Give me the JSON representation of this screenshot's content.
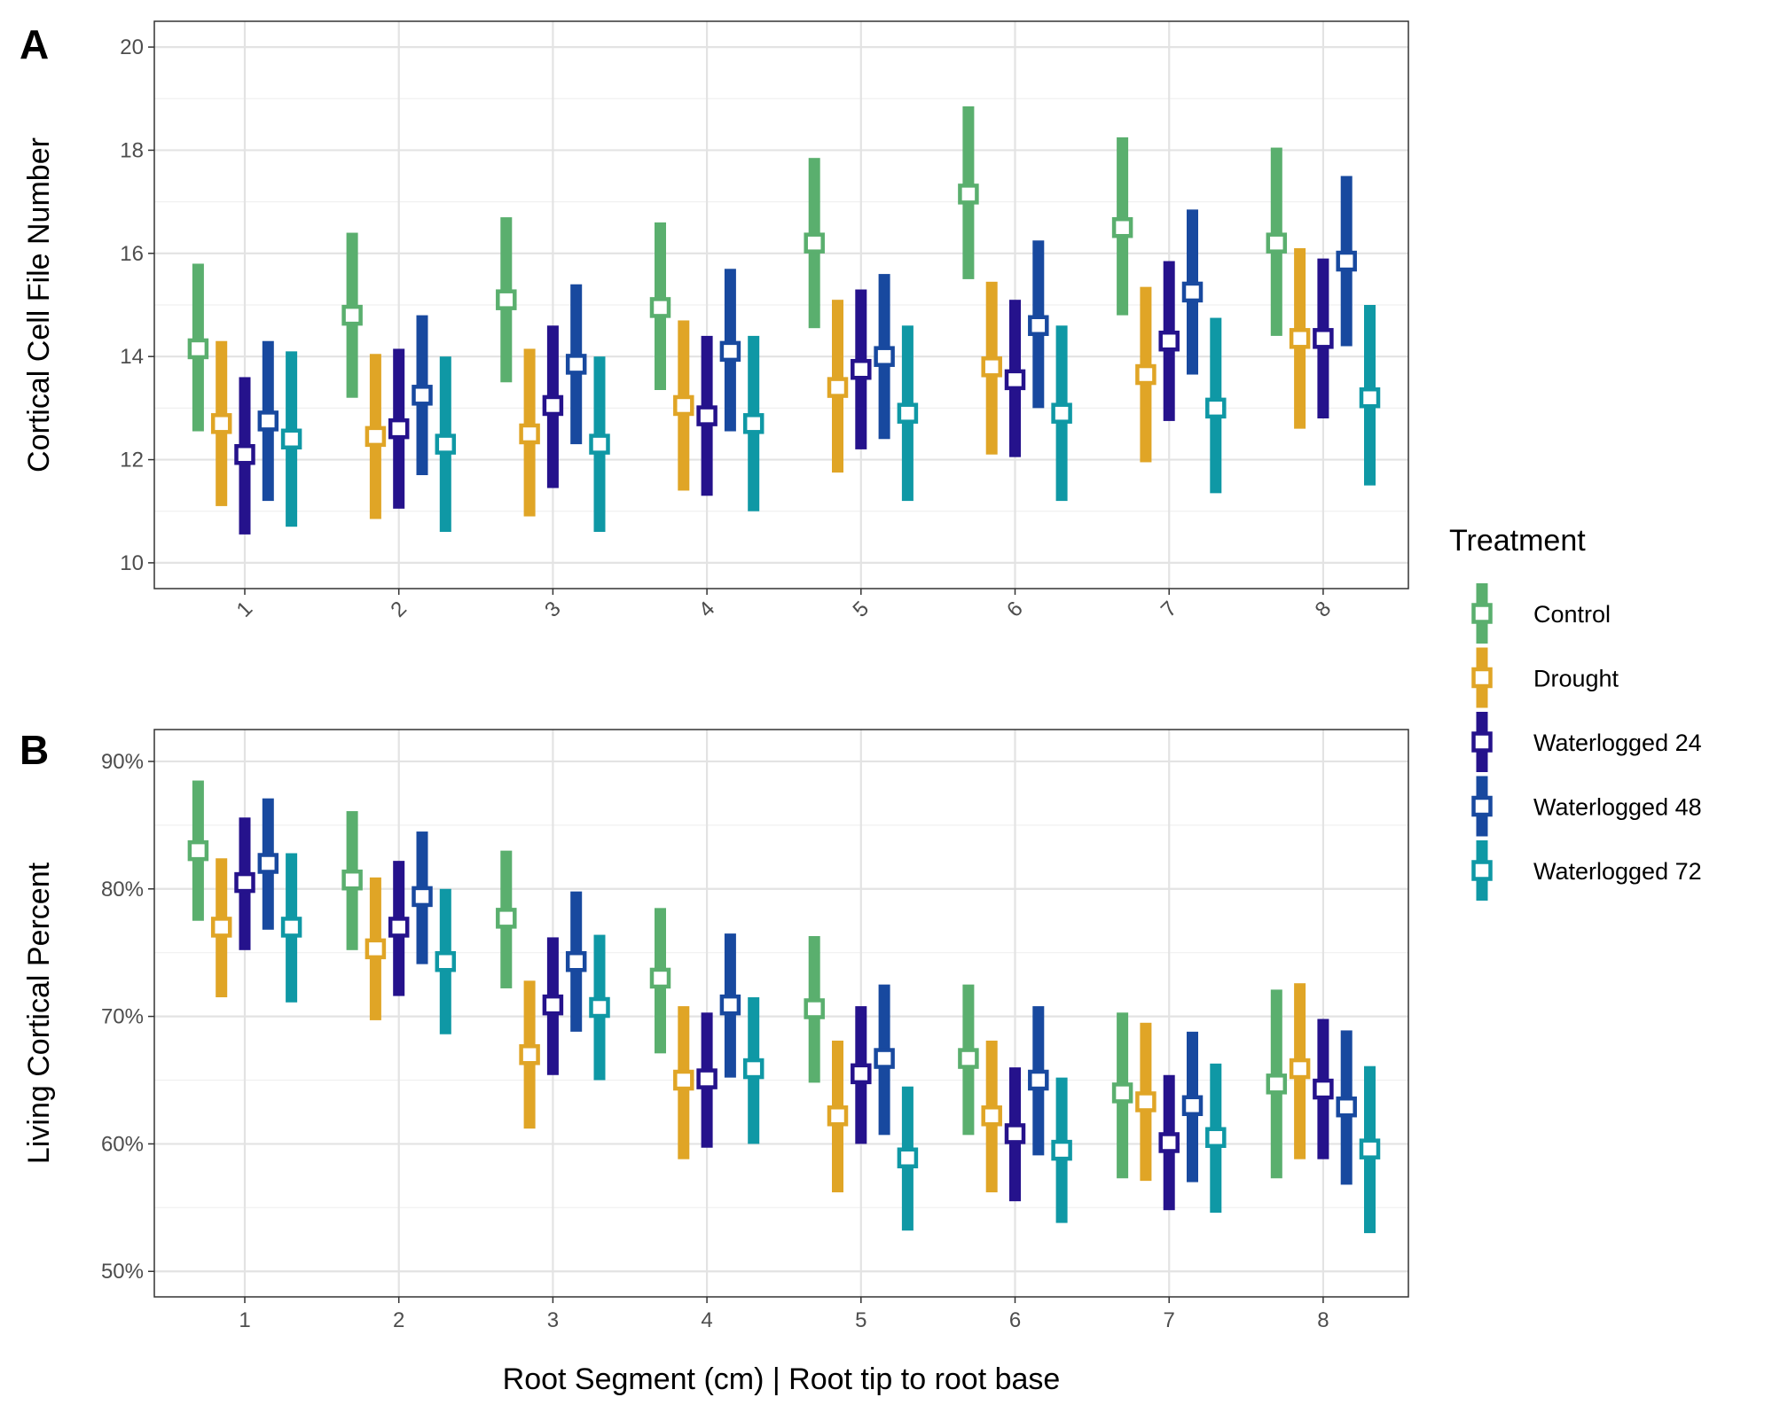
{
  "chart_data": [
    {
      "type": "pointrange",
      "panel_tag": "A",
      "ylabel": "Cortical Cell File Number",
      "xlabel": "",
      "categories": [
        "1",
        "2",
        "3",
        "4",
        "5",
        "6",
        "7",
        "8"
      ],
      "x_tick_rotation": "rotated",
      "ylim": [
        9.5,
        20.5
      ],
      "y_ticks": [
        "10",
        "12",
        "14",
        "16",
        "18",
        "20"
      ],
      "grid": true,
      "series": [
        {
          "name": "Control",
          "color": "#5aaf6e",
          "mean": [
            14.15,
            14.8,
            15.1,
            14.95,
            16.2,
            17.15,
            16.5,
            16.2
          ],
          "low": [
            12.55,
            13.2,
            13.5,
            13.35,
            14.55,
            15.5,
            14.8,
            14.4
          ],
          "high": [
            15.8,
            16.4,
            16.7,
            16.6,
            17.85,
            18.85,
            18.25,
            18.05
          ]
        },
        {
          "name": "Drought",
          "color": "#e0a526",
          "mean": [
            12.7,
            12.45,
            12.5,
            13.05,
            13.4,
            13.8,
            13.65,
            14.35
          ],
          "low": [
            11.1,
            10.85,
            10.9,
            11.4,
            11.75,
            12.1,
            11.95,
            12.6
          ],
          "high": [
            14.3,
            14.05,
            14.15,
            14.7,
            15.1,
            15.45,
            15.35,
            16.1
          ]
        },
        {
          "name": "Waterlogged 24",
          "color": "#25128c",
          "mean": [
            12.1,
            12.6,
            13.05,
            12.85,
            13.75,
            13.55,
            14.3,
            14.35
          ],
          "low": [
            10.55,
            11.05,
            11.45,
            11.3,
            12.2,
            12.05,
            12.75,
            12.8
          ],
          "high": [
            13.6,
            14.15,
            14.6,
            14.4,
            15.3,
            15.1,
            15.85,
            15.9
          ]
        },
        {
          "name": "Waterlogged 48",
          "color": "#18499f",
          "mean": [
            12.75,
            13.25,
            13.85,
            14.1,
            14.0,
            14.6,
            15.25,
            15.85
          ],
          "low": [
            11.2,
            11.7,
            12.3,
            12.55,
            12.4,
            13.0,
            13.65,
            14.2
          ],
          "high": [
            14.3,
            14.8,
            15.4,
            15.7,
            15.6,
            16.25,
            16.85,
            17.5
          ]
        },
        {
          "name": "Waterlogged 72",
          "color": "#0f98a5",
          "mean": [
            12.4,
            12.3,
            12.3,
            12.7,
            12.9,
            12.9,
            13.0,
            13.2
          ],
          "low": [
            10.7,
            10.6,
            10.6,
            11.0,
            11.2,
            11.2,
            11.35,
            11.5
          ],
          "high": [
            14.1,
            14.0,
            14.0,
            14.4,
            14.6,
            14.6,
            14.75,
            15.0
          ]
        }
      ]
    },
    {
      "type": "pointrange",
      "panel_tag": "B",
      "ylabel": "Living Cortical Percent",
      "xlabel": "Root Segment (cm) | Root tip to root base",
      "categories": [
        "1",
        "2",
        "3",
        "4",
        "5",
        "6",
        "7",
        "8"
      ],
      "x_tick_rotation": "none",
      "ylim": [
        48,
        92.5
      ],
      "y_ticks": [
        "50%",
        "60%",
        "70%",
        "80%",
        "90%"
      ],
      "grid": true,
      "series": [
        {
          "name": "Control",
          "color": "#5aaf6e",
          "mean": [
            83.0,
            80.7,
            77.7,
            73.0,
            70.6,
            66.7,
            64.0,
            64.7
          ],
          "low": [
            77.5,
            75.2,
            72.2,
            67.1,
            64.8,
            60.7,
            57.3,
            57.3
          ],
          "high": [
            88.5,
            86.1,
            83.0,
            78.5,
            76.3,
            72.5,
            70.3,
            72.1
          ]
        },
        {
          "name": "Drought",
          "color": "#e0a526",
          "mean": [
            77.0,
            75.3,
            67.0,
            65.0,
            62.2,
            62.2,
            63.3,
            65.9
          ],
          "low": [
            71.5,
            69.7,
            61.2,
            58.8,
            56.2,
            56.2,
            57.1,
            58.8
          ],
          "high": [
            82.4,
            80.9,
            72.8,
            70.8,
            68.1,
            68.1,
            69.5,
            72.6
          ]
        },
        {
          "name": "Waterlogged 24",
          "color": "#25128c",
          "mean": [
            80.5,
            77.0,
            70.9,
            65.1,
            65.5,
            60.8,
            60.1,
            64.3
          ],
          "low": [
            75.2,
            71.6,
            65.4,
            59.7,
            60.0,
            55.5,
            54.8,
            58.8
          ],
          "high": [
            85.6,
            82.2,
            76.2,
            70.3,
            70.8,
            66.0,
            65.4,
            69.8
          ]
        },
        {
          "name": "Waterlogged 48",
          "color": "#18499f",
          "mean": [
            82.0,
            79.4,
            74.3,
            70.9,
            66.7,
            65.0,
            63.0,
            62.9
          ],
          "low": [
            76.8,
            74.1,
            68.8,
            65.2,
            60.7,
            59.1,
            57.0,
            56.8
          ],
          "high": [
            87.1,
            84.5,
            79.8,
            76.5,
            72.5,
            70.8,
            68.8,
            68.9
          ]
        },
        {
          "name": "Waterlogged 72",
          "color": "#0f98a5",
          "mean": [
            77.0,
            74.3,
            70.7,
            65.9,
            58.9,
            59.5,
            60.5,
            59.6
          ],
          "low": [
            71.1,
            68.6,
            65.0,
            60.0,
            53.2,
            53.8,
            54.6,
            53.0
          ],
          "high": [
            82.8,
            80.0,
            76.4,
            71.5,
            64.5,
            65.2,
            66.3,
            66.1
          ]
        }
      ]
    }
  ],
  "legend": {
    "title": "Treatment",
    "placement": "right",
    "items": [
      {
        "label": "Control",
        "color": "#5aaf6e"
      },
      {
        "label": "Drought",
        "color": "#e0a526"
      },
      {
        "label": "Waterlogged 24",
        "color": "#25128c"
      },
      {
        "label": "Waterlogged 48",
        "color": "#18499f"
      },
      {
        "label": "Waterlogged 72",
        "color": "#0f98a5"
      }
    ]
  }
}
